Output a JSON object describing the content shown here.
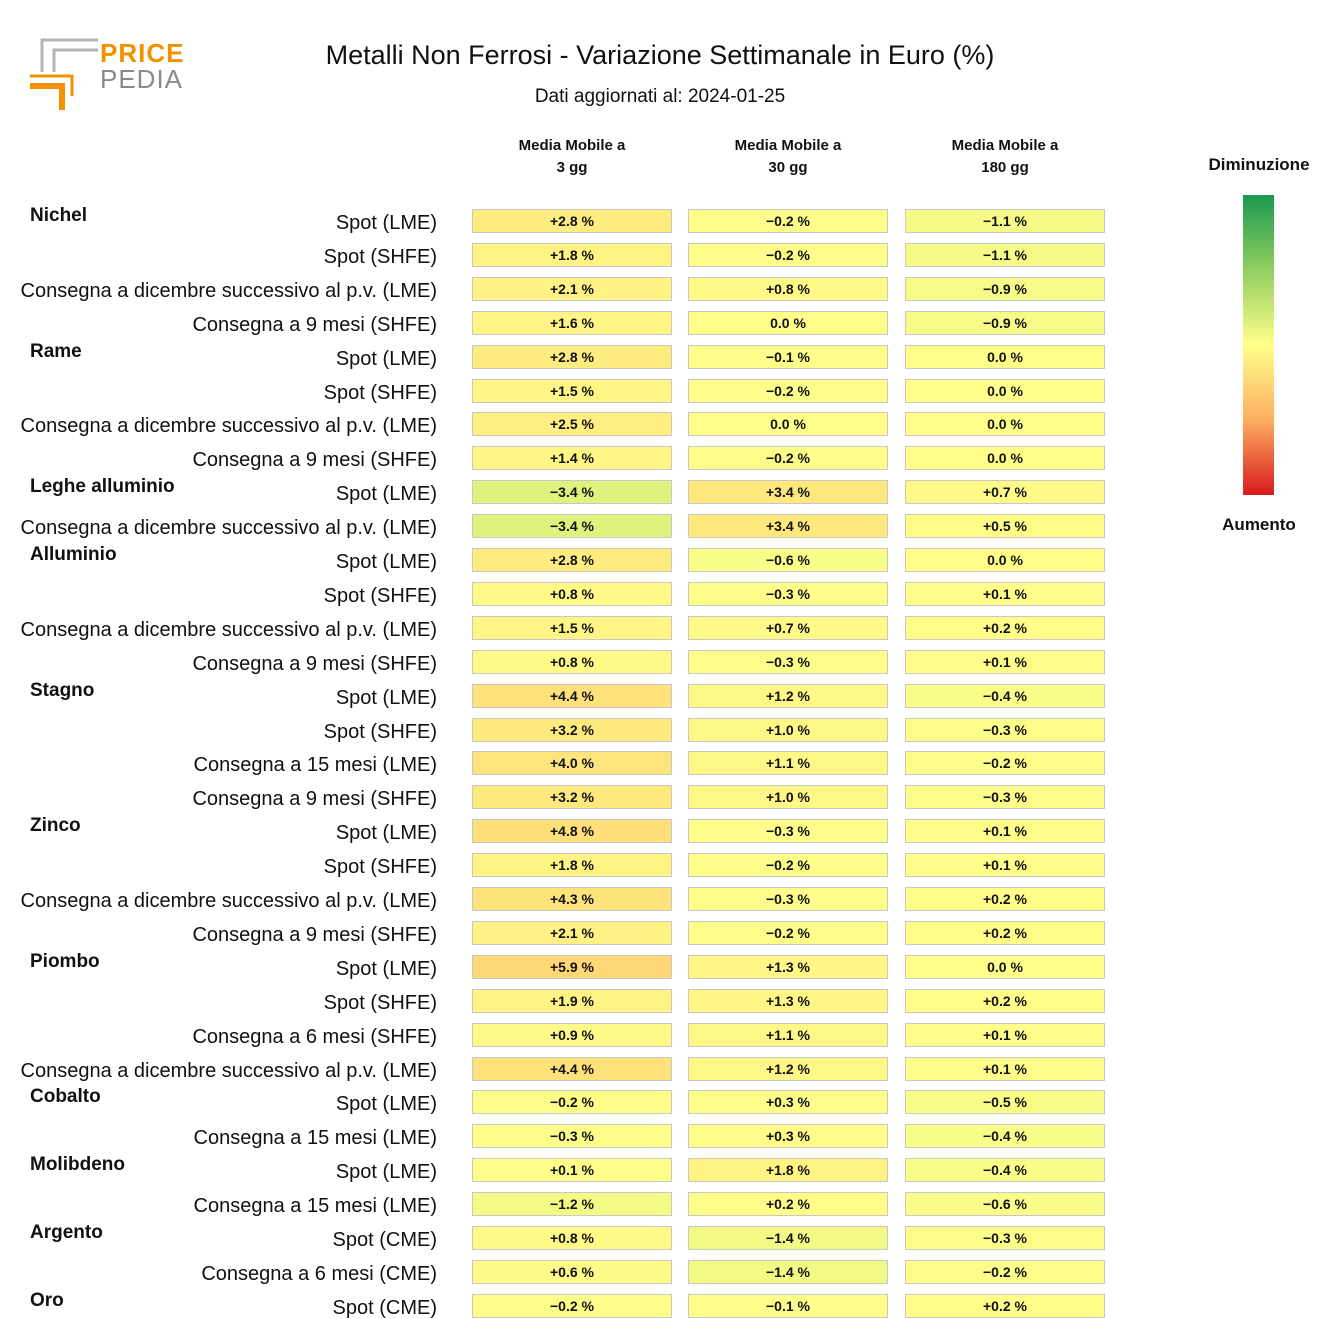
{
  "logo": {
    "word1": "PRICE",
    "word2": "PEDIA"
  },
  "title": "Metalli Non Ferrosi - Variazione Settimanale in Euro (%)",
  "subtitle": "Dati aggiornati al: 2024-01-25",
  "legend": {
    "top": "Diminuzione",
    "bottom": "Aumento",
    "colors": [
      "#1a9850",
      "#91cf60",
      "#ffff8a",
      "#fdae61",
      "#d7191c"
    ]
  },
  "chart_data": {
    "type": "table",
    "columns": [
      "Media Mobile a\n3 gg",
      "Media Mobile a\n30 gg",
      "Media Mobile a\n180 gg"
    ],
    "rows": [
      {
        "group": "Nichel",
        "label": "Spot (LME)",
        "values": [
          2.8,
          -0.2,
          -1.1
        ]
      },
      {
        "group": "",
        "label": "Spot (SHFE)",
        "values": [
          1.8,
          -0.2,
          -1.1
        ]
      },
      {
        "group": "",
        "label": "Consegna a dicembre successivo al p.v. (LME)",
        "values": [
          2.1,
          0.8,
          -0.9
        ]
      },
      {
        "group": "",
        "label": "Consegna a 9 mesi (SHFE)",
        "values": [
          1.6,
          0.0,
          -0.9
        ]
      },
      {
        "group": "Rame",
        "label": "Spot (LME)",
        "values": [
          2.8,
          -0.1,
          0.0
        ]
      },
      {
        "group": "",
        "label": "Spot (SHFE)",
        "values": [
          1.5,
          -0.2,
          0.0
        ]
      },
      {
        "group": "",
        "label": "Consegna a dicembre successivo al p.v. (LME)",
        "values": [
          2.5,
          0.0,
          0.0
        ]
      },
      {
        "group": "",
        "label": "Consegna a 9 mesi (SHFE)",
        "values": [
          1.4,
          -0.2,
          0.0
        ]
      },
      {
        "group": "Leghe alluminio",
        "label": "Spot (LME)",
        "values": [
          -3.4,
          3.4,
          0.7
        ]
      },
      {
        "group": "",
        "label": "Consegna a dicembre successivo al p.v. (LME)",
        "values": [
          -3.4,
          3.4,
          0.5
        ]
      },
      {
        "group": "Alluminio",
        "label": "Spot (LME)",
        "values": [
          2.8,
          -0.6,
          0.0
        ]
      },
      {
        "group": "",
        "label": "Spot (SHFE)",
        "values": [
          0.8,
          -0.3,
          0.1
        ]
      },
      {
        "group": "",
        "label": "Consegna a dicembre successivo al p.v. (LME)",
        "values": [
          1.5,
          0.7,
          0.2
        ]
      },
      {
        "group": "",
        "label": "Consegna a 9 mesi (SHFE)",
        "values": [
          0.8,
          -0.3,
          0.1
        ]
      },
      {
        "group": "Stagno",
        "label": "Spot (LME)",
        "values": [
          4.4,
          1.2,
          -0.4
        ]
      },
      {
        "group": "",
        "label": "Spot (SHFE)",
        "values": [
          3.2,
          1.0,
          -0.3
        ]
      },
      {
        "group": "",
        "label": "Consegna a 15 mesi (LME)",
        "values": [
          4.0,
          1.1,
          -0.2
        ]
      },
      {
        "group": "",
        "label": "Consegna a 9 mesi (SHFE)",
        "values": [
          3.2,
          1.0,
          -0.3
        ]
      },
      {
        "group": "Zinco",
        "label": "Spot (LME)",
        "values": [
          4.8,
          -0.3,
          0.1
        ]
      },
      {
        "group": "",
        "label": "Spot (SHFE)",
        "values": [
          1.8,
          -0.2,
          0.1
        ]
      },
      {
        "group": "",
        "label": "Consegna a dicembre successivo al p.v. (LME)",
        "values": [
          4.3,
          -0.3,
          0.2
        ]
      },
      {
        "group": "",
        "label": "Consegna a 9 mesi (SHFE)",
        "values": [
          2.1,
          -0.2,
          0.2
        ]
      },
      {
        "group": "Piombo",
        "label": "Spot (LME)",
        "values": [
          5.9,
          1.3,
          0.0
        ]
      },
      {
        "group": "",
        "label": "Spot (SHFE)",
        "values": [
          1.9,
          1.3,
          0.2
        ]
      },
      {
        "group": "",
        "label": "Consegna a 6 mesi (SHFE)",
        "values": [
          0.9,
          1.1,
          0.1
        ]
      },
      {
        "group": "",
        "label": "Consegna a dicembre successivo al p.v. (LME)",
        "values": [
          4.4,
          1.2,
          0.1
        ]
      },
      {
        "group": "Cobalto",
        "label": "Spot (LME)",
        "values": [
          -0.2,
          0.3,
          -0.5
        ]
      },
      {
        "group": "",
        "label": "Consegna a 15 mesi (LME)",
        "values": [
          -0.3,
          0.3,
          -0.4
        ]
      },
      {
        "group": "Molibdeno",
        "label": "Spot (LME)",
        "values": [
          0.1,
          1.8,
          -0.4
        ]
      },
      {
        "group": "",
        "label": "Consegna a 15 mesi (LME)",
        "values": [
          -1.2,
          0.2,
          -0.6
        ]
      },
      {
        "group": "Argento",
        "label": "Spot (CME)",
        "values": [
          0.8,
          -1.4,
          -0.3
        ]
      },
      {
        "group": "",
        "label": "Consegna a 6 mesi (CME)",
        "values": [
          0.6,
          -1.4,
          -0.2
        ]
      },
      {
        "group": "Oro",
        "label": "Spot (CME)",
        "values": [
          -0.2,
          -0.1,
          0.2
        ]
      }
    ]
  }
}
